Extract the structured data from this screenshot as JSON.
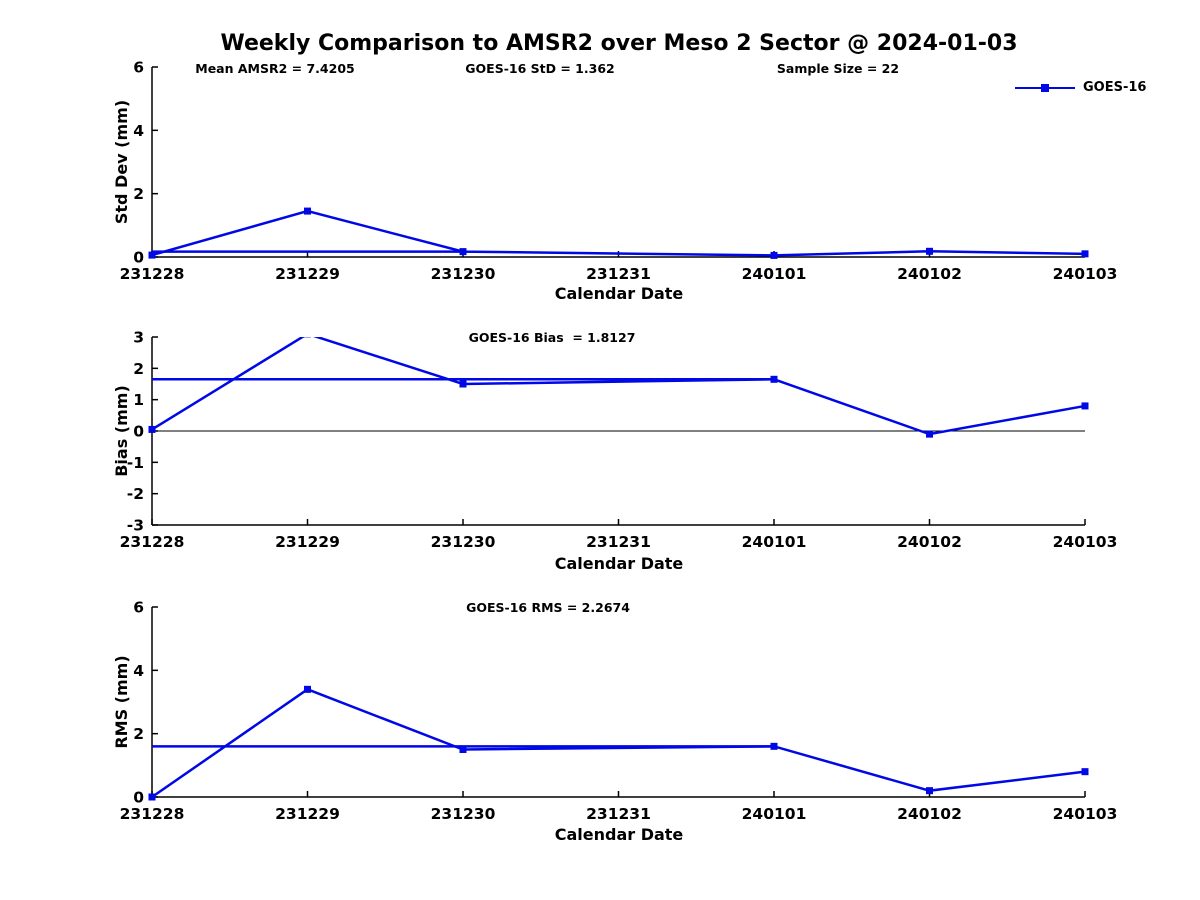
{
  "figure": {
    "title": "Weekly Comparison to AMSR2 over Meso 2 Sector @ 2024-01-03",
    "background_color": "#ffffff",
    "line_color": "#0008e6",
    "axis_color": "#000000"
  },
  "annotations": {
    "mean_amsr2": "Mean AMSR2 = 7.4205",
    "goes_std": "GOES-16 StD = 1.362",
    "sample_size": "Sample Size = 22",
    "goes_bias": "GOES-16 Bias  = 1.8127",
    "goes_rms": "GOES-16 RMS = 2.2674"
  },
  "legend": {
    "label": "GOES-16",
    "marker": "filled-square",
    "color": "#0008e6",
    "position": "top-right"
  },
  "chart_data": [
    {
      "type": "line",
      "name": "std-dev-panel",
      "ylabel": "Std Dev (mm)",
      "xlabel": "Calendar Date",
      "categories": [
        "231228",
        "231229",
        "231230",
        "231231",
        "240101",
        "240102",
        "240103"
      ],
      "series": [
        {
          "name": "GOES-16",
          "values": [
            0.06,
            1.45,
            0.17,
            null,
            0.05,
            0.18,
            0.1
          ]
        }
      ],
      "flat_segment": {
        "value": 0.17,
        "x_from": "231228",
        "x_to": "231230"
      },
      "ylim": [
        0,
        6
      ],
      "yticks": [
        0,
        2,
        4,
        6
      ],
      "zero_line": false,
      "grid": false,
      "note": "no data point at 231231; line connects 231230 to 240101"
    },
    {
      "type": "line",
      "name": "bias-panel",
      "ylabel": "Bias (mm)",
      "xlabel": "Calendar Date",
      "categories": [
        "231228",
        "231229",
        "231230",
        "231231",
        "240101",
        "240102",
        "240103"
      ],
      "series": [
        {
          "name": "GOES-16",
          "values": [
            0.05,
            3.1,
            1.5,
            null,
            1.65,
            -0.1,
            0.8
          ]
        }
      ],
      "flat_segment": {
        "value": 1.65,
        "x_from": "231228",
        "x_to": "240101"
      },
      "ylim": [
        -3,
        3
      ],
      "yticks": [
        -3,
        -2,
        -1,
        0,
        1,
        2,
        3
      ],
      "zero_line": true,
      "grid": false,
      "note": "231229 peak exceeds axis max and is clipped at y=3"
    },
    {
      "type": "line",
      "name": "rms-panel",
      "ylabel": "RMS (mm)",
      "xlabel": "Calendar Date",
      "categories": [
        "231228",
        "231229",
        "231230",
        "231231",
        "240101",
        "240102",
        "240103"
      ],
      "series": [
        {
          "name": "GOES-16",
          "values": [
            0.0,
            3.4,
            1.5,
            null,
            1.6,
            0.2,
            0.8
          ]
        }
      ],
      "flat_segment": {
        "value": 1.6,
        "x_from": "231228",
        "x_to": "240101"
      },
      "ylim": [
        0,
        6
      ],
      "yticks": [
        0,
        2,
        4,
        6
      ],
      "zero_line": false,
      "grid": false,
      "note": "no data point at 231231; line connects 231230 to 240101"
    }
  ]
}
